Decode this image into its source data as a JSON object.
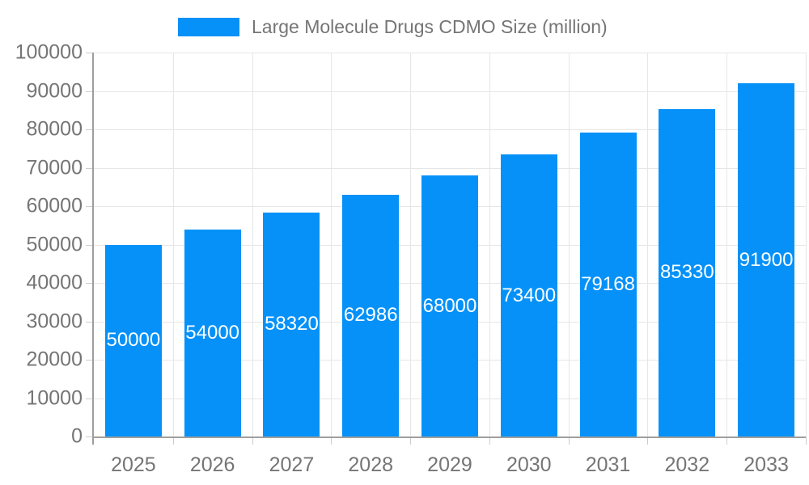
{
  "legend": {
    "label": "Large Molecule Drugs CDMO Size (million)"
  },
  "chart_data": {
    "type": "bar",
    "title": "Large Molecule Drugs CDMO Size (million)",
    "categories": [
      "2025",
      "2026",
      "2027",
      "2028",
      "2029",
      "2030",
      "2031",
      "2032",
      "2033"
    ],
    "values": [
      50000,
      54000,
      58320,
      62986,
      68000,
      73400,
      79168,
      85330,
      91900
    ],
    "value_labels": [
      "50000",
      "54000",
      "58320",
      "62986",
      "68000",
      "73400",
      "79168",
      "85330",
      "91900"
    ],
    "xlabel": "",
    "ylabel": "",
    "ylim": [
      0,
      100000
    ],
    "ytick_step": 10000,
    "ytick_labels": [
      "0",
      "10000",
      "20000",
      "30000",
      "40000",
      "50000",
      "60000",
      "70000",
      "80000",
      "90000",
      "100000"
    ],
    "grid": true,
    "legend_position": "top",
    "value_label_position": "inside-center",
    "colors": {
      "bar": "#0591f8",
      "value_label": "#ffffff",
      "axis_text": "#757575",
      "gridline": "#e6e6e6",
      "axis_line": "#9e9e9e",
      "tick": "#cccccc",
      "background": "#ffffff"
    }
  }
}
